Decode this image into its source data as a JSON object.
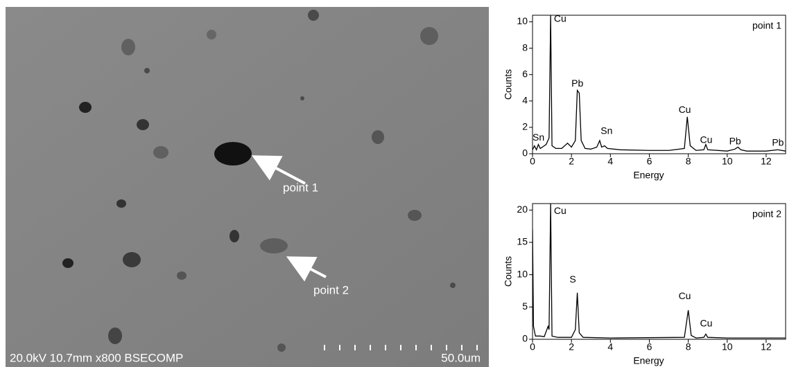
{
  "image": {
    "points": [
      "point 1",
      "point 2"
    ],
    "caption": "20.0kV 10.7mm x800 BSECOMP",
    "scale": "50.0um"
  },
  "chart_data": [
    {
      "type": "line",
      "label": "point 1",
      "x_label": "Energy",
      "y_label": "Counts",
      "color": "#000000",
      "x": [
        0,
        0.1,
        0.2,
        0.3,
        0.4,
        0.5,
        0.7,
        0.85,
        0.93,
        1.0,
        1.2,
        1.5,
        1.8,
        2.0,
        2.2,
        2.3,
        2.4,
        2.5,
        2.7,
        3.0,
        3.3,
        3.45,
        3.55,
        3.7,
        3.85,
        4.5,
        6,
        7,
        7.8,
        7.95,
        8.1,
        8.4,
        8.8,
        8.9,
        9.0,
        10,
        10.4,
        10.55,
        10.7,
        11,
        12,
        12.6,
        13
      ],
      "values": [
        0.3,
        0.6,
        0.3,
        0.7,
        0.4,
        0.5,
        0.7,
        1.2,
        10.5,
        0.6,
        0.4,
        0.4,
        0.8,
        0.5,
        1.0,
        4.8,
        4.6,
        1.0,
        0.4,
        0.35,
        0.5,
        1.0,
        0.5,
        0.6,
        0.4,
        0.3,
        0.25,
        0.25,
        0.4,
        2.8,
        0.6,
        0.25,
        0.3,
        0.7,
        0.3,
        0.2,
        0.35,
        0.5,
        0.3,
        0.2,
        0.2,
        0.3,
        0.2
      ],
      "xlim": [
        0,
        13
      ],
      "ylim": [
        0,
        10.5
      ],
      "xticks": [
        0,
        2,
        4,
        6,
        8,
        10,
        12
      ],
      "yticks": [
        0,
        2,
        4,
        6,
        8,
        10
      ],
      "annotations": [
        {
          "text": "Cu",
          "x": 1.1,
          "y": 10.2
        },
        {
          "text": "Pb",
          "x": 2.0,
          "y": 5.3
        },
        {
          "text": "Sn",
          "x": 0.0,
          "y": 1.2
        },
        {
          "text": "Sn",
          "x": 3.5,
          "y": 1.7
        },
        {
          "text": "Cu",
          "x": 7.5,
          "y": 3.3
        },
        {
          "text": "Cu",
          "x": 8.6,
          "y": 1.0
        },
        {
          "text": "Pb",
          "x": 10.1,
          "y": 0.9
        },
        {
          "text": "Pb",
          "x": 12.3,
          "y": 0.8
        }
      ]
    },
    {
      "type": "line",
      "label": "point 2",
      "x_label": "Energy",
      "y_label": "Counts",
      "color": "#000000",
      "x": [
        0,
        0.05,
        0.15,
        0.4,
        0.6,
        0.8,
        0.85,
        0.93,
        1.0,
        1.3,
        2.0,
        2.2,
        2.3,
        2.4,
        2.6,
        4,
        7.8,
        8.0,
        8.15,
        8.4,
        8.8,
        8.9,
        9.0,
        10,
        13
      ],
      "values": [
        17,
        2,
        0.5,
        0.5,
        0.4,
        2,
        1.5,
        21,
        0.5,
        0.3,
        0.3,
        1.5,
        7.2,
        1.0,
        0.3,
        0.2,
        0.3,
        4.5,
        0.6,
        0.2,
        0.3,
        0.8,
        0.3,
        0.2,
        0.2
      ],
      "xlim": [
        0,
        13
      ],
      "ylim": [
        0,
        21
      ],
      "xticks": [
        0,
        2,
        4,
        6,
        8,
        10,
        12
      ],
      "yticks": [
        0,
        5,
        10,
        15,
        20
      ],
      "annotations": [
        {
          "text": "Cu",
          "x": 1.1,
          "y": 19.8
        },
        {
          "text": "S",
          "x": 1.9,
          "y": 9.2
        },
        {
          "text": "Cu",
          "x": 7.5,
          "y": 6.6
        },
        {
          "text": "Cu",
          "x": 8.6,
          "y": 2.4
        }
      ]
    }
  ]
}
